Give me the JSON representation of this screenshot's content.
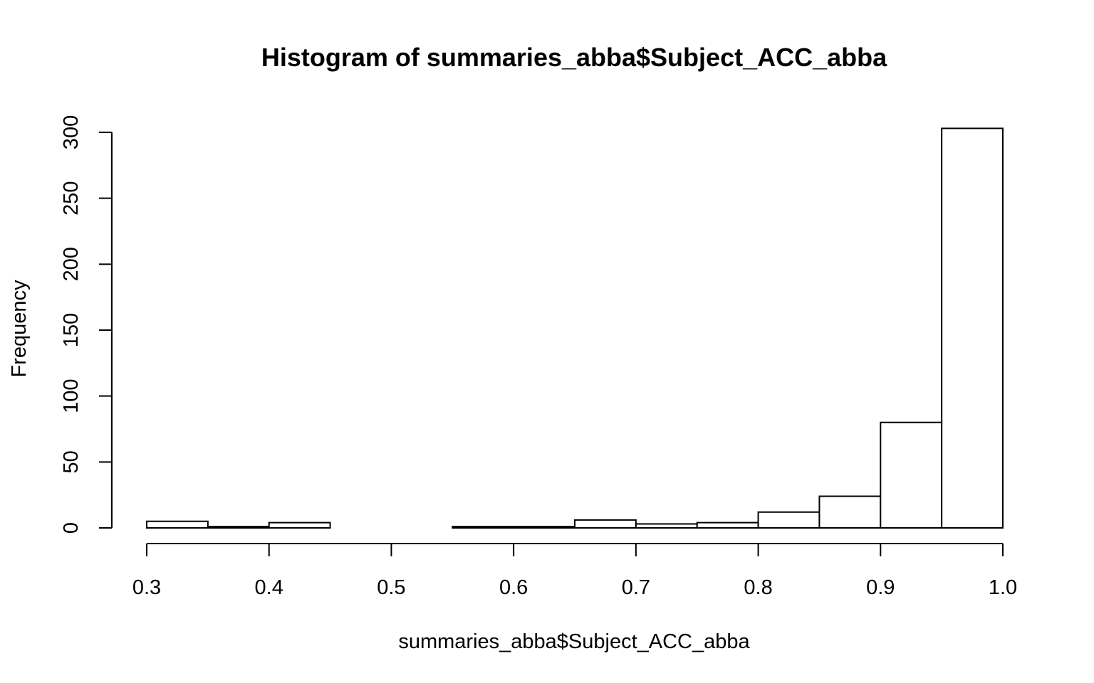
{
  "chart_data": {
    "type": "bar",
    "title": "Histogram of summaries_abba$Subject_ACC_abba",
    "xlabel": "summaries_abba$Subject_ACC_abba",
    "ylabel": "Frequency",
    "bins": [
      {
        "start": 0.3,
        "end": 0.35,
        "count": 5
      },
      {
        "start": 0.35,
        "end": 0.4,
        "count": 1
      },
      {
        "start": 0.4,
        "end": 0.45,
        "count": 4
      },
      {
        "start": 0.45,
        "end": 0.5,
        "count": 0
      },
      {
        "start": 0.5,
        "end": 0.55,
        "count": 0
      },
      {
        "start": 0.55,
        "end": 0.6,
        "count": 1
      },
      {
        "start": 0.6,
        "end": 0.65,
        "count": 1
      },
      {
        "start": 0.65,
        "end": 0.7,
        "count": 6
      },
      {
        "start": 0.7,
        "end": 0.75,
        "count": 3
      },
      {
        "start": 0.75,
        "end": 0.8,
        "count": 4
      },
      {
        "start": 0.8,
        "end": 0.85,
        "count": 12
      },
      {
        "start": 0.85,
        "end": 0.9,
        "count": 24
      },
      {
        "start": 0.9,
        "end": 0.95,
        "count": 80
      },
      {
        "start": 0.95,
        "end": 1.0,
        "count": 303
      }
    ],
    "xlim": [
      0.3,
      1.0
    ],
    "ylim": [
      0,
      300
    ],
    "x_ticks": [
      "0.3",
      "0.4",
      "0.5",
      "0.6",
      "0.7",
      "0.8",
      "0.9",
      "1.0"
    ],
    "y_ticks": [
      "0",
      "50",
      "100",
      "150",
      "200",
      "250",
      "300"
    ],
    "grid": false,
    "legend": "none"
  }
}
